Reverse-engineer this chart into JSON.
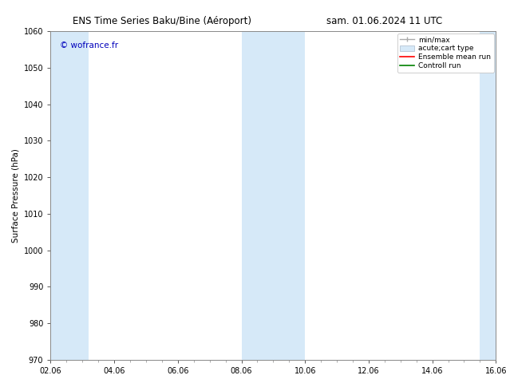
{
  "title_left": "ENS Time Series Baku/Bine (Aéroport)",
  "title_right": "sam. 01.06.2024 11 UTC",
  "ylabel": "Surface Pressure (hPa)",
  "ylim": [
    970,
    1060
  ],
  "yticks": [
    970,
    980,
    990,
    1000,
    1010,
    1020,
    1030,
    1040,
    1050,
    1060
  ],
  "xlim": [
    0.0,
    14.0
  ],
  "xtick_labels": [
    "02.06",
    "04.06",
    "06.06",
    "08.06",
    "10.06",
    "12.06",
    "14.06",
    "16.06"
  ],
  "xtick_positions": [
    0,
    2,
    4,
    6,
    8,
    10,
    12,
    14
  ],
  "shaded_bands": [
    {
      "x_start": 0.0,
      "x_end": 1.2
    },
    {
      "x_start": 6.0,
      "x_end": 8.0
    },
    {
      "x_start": 13.5,
      "x_end": 14.0
    }
  ],
  "band_color": "#d6e9f8",
  "background_color": "#ffffff",
  "watermark_text": "© wofrance.fr",
  "watermark_color": "#0000bb",
  "watermark_fontsize": 7.5,
  "legend_entries": [
    {
      "label": "min/max",
      "color": "#aaaaaa",
      "type": "errorbar"
    },
    {
      "label": "acute;cart type",
      "color": "#d6e9f8",
      "type": "bar"
    },
    {
      "label": "Ensemble mean run",
      "color": "#ff0000",
      "type": "line"
    },
    {
      "label": "Controll run",
      "color": "#008000",
      "type": "line"
    }
  ],
  "title_fontsize": 8.5,
  "tick_fontsize": 7,
  "ylabel_fontsize": 7.5,
  "legend_fontsize": 6.5
}
